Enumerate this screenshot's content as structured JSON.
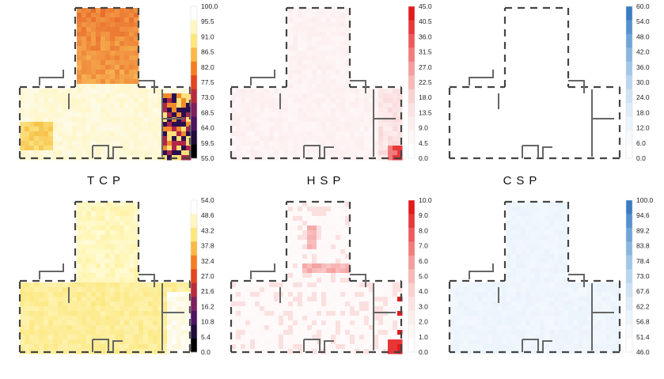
{
  "columns": [
    {
      "key": "tcp",
      "title": "TCP"
    },
    {
      "key": "hsp",
      "title": "HSP"
    },
    {
      "key": "csp",
      "title": "CSP"
    }
  ],
  "panels": [
    {
      "id": "top-tcp",
      "row": 0,
      "col": 0,
      "colormap": "inferno",
      "colorbar": [
        "100.0",
        "95.5",
        "91.0",
        "86.5",
        "82.0",
        "77.5",
        "73.0",
        "68.5",
        "64.0",
        "59.5",
        "55.0"
      ],
      "colors": [
        "#ffffff",
        "#fef6c0",
        "#fde77a",
        "#fbb844",
        "#f57d21",
        "#e3451f",
        "#b72b3c",
        "#7e1f5e",
        "#4d1362",
        "#200c3a",
        "#000004"
      ],
      "fill": "warm"
    },
    {
      "id": "top-hsp",
      "row": 0,
      "col": 1,
      "colormap": "reds",
      "colorbar": [
        "45.0",
        "40.5",
        "36.0",
        "31.5",
        "27.0",
        "22.5",
        "18.0",
        "13.5",
        "9.0",
        "4.5",
        "0.0"
      ],
      "colors": [
        "#e31a1c",
        "#e8383a",
        "#ee5a5c",
        "#f27b7c",
        "#f59c9c",
        "#f8b8b8",
        "#fad0d0",
        "#fce2e2",
        "#fdeeee",
        "#fef7f7",
        "#ffffff"
      ],
      "fill": "palepink"
    },
    {
      "id": "top-csp",
      "row": 0,
      "col": 2,
      "colormap": "blues",
      "colorbar": [
        "60.0",
        "54.0",
        "48.0",
        "42.0",
        "36.0",
        "30.0",
        "24.0",
        "18.0",
        "12.0",
        "6.0",
        "0.0"
      ],
      "colors": [
        "#3a7cc4",
        "#5590cf",
        "#6ea4d8",
        "#88b6e0",
        "#a1c7e8",
        "#b9d6ef",
        "#cde2f5",
        "#deecf9",
        "#ecf4fc",
        "#f6fafd",
        "#ffffff"
      ],
      "fill": "none"
    },
    {
      "id": "bottom-tcp",
      "row": 1,
      "col": 0,
      "colormap": "inferno",
      "colorbar": [
        "54.0",
        "48.6",
        "43.2",
        "37.8",
        "32.4",
        "27.0",
        "21.6",
        "16.2",
        "10.8",
        "5.4",
        "0.0"
      ],
      "colors": [
        "#ffffff",
        "#fef6c0",
        "#fde77a",
        "#fbb844",
        "#f57d21",
        "#e3451f",
        "#b72b3c",
        "#7e1f5e",
        "#4d1362",
        "#200c3a",
        "#000004"
      ],
      "fill": "yellow"
    },
    {
      "id": "bottom-hsp",
      "row": 1,
      "col": 1,
      "colormap": "reds",
      "colorbar": [
        "10.0",
        "9.0",
        "8.0",
        "7.0",
        "6.0",
        "5.0",
        "4.0",
        "3.0",
        "2.0",
        "1.0",
        "0.0"
      ],
      "colors": [
        "#e31a1c",
        "#e8383a",
        "#ee5a5c",
        "#f27b7c",
        "#f59c9c",
        "#f8b8b8",
        "#fad0d0",
        "#fce2e2",
        "#fdeeee",
        "#fef7f7",
        "#ffffff"
      ],
      "fill": "pinkspots"
    },
    {
      "id": "bottom-csp",
      "row": 1,
      "col": 2,
      "colormap": "blues",
      "colorbar": [
        "100.0",
        "94.6",
        "89.2",
        "83.8",
        "78.4",
        "73.0",
        "67.6",
        "62.2",
        "56.8",
        "51.4",
        "46.0"
      ],
      "colors": [
        "#3a7cc4",
        "#5590cf",
        "#6ea4d8",
        "#88b6e0",
        "#a1c7e8",
        "#b9d6ef",
        "#cde2f5",
        "#deecf9",
        "#ecf4fc",
        "#f6fafd",
        "#ffffff"
      ],
      "fill": "lightblue"
    }
  ]
}
